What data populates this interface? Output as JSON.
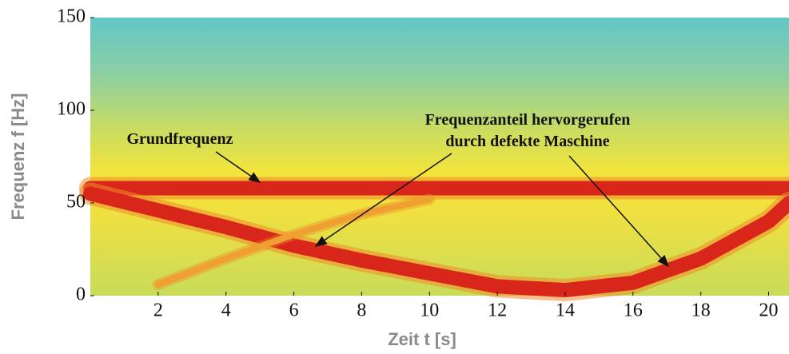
{
  "chart_data": {
    "type": "spectrogram",
    "x_label": "Zeit t [s]",
    "y_label": "Frequenz f  [Hz]",
    "xlim": [
      0,
      20.6
    ],
    "ylim": [
      0,
      150
    ],
    "xticks": [
      2,
      4,
      6,
      8,
      10,
      12,
      14,
      16,
      18,
      20
    ],
    "yticks": [
      0,
      50,
      100,
      150
    ],
    "annotations": [
      [
        "Grundfrequenz"
      ],
      [
        "Frequenzanteil hervorgerufen",
        "durch defekte Maschine"
      ]
    ],
    "series": [
      {
        "color": "#d8261a",
        "x": [
          0,
          20.6
        ],
        "values": [
          58,
          58
        ]
      },
      {
        "color": "#d8261a",
        "x": [
          0,
          2,
          4,
          6,
          8,
          10,
          12,
          14,
          16,
          18,
          20,
          20.6
        ],
        "values": [
          55,
          46,
          37,
          27,
          19,
          12,
          5,
          3,
          7,
          20,
          40,
          50
        ]
      },
      {
        "color": "#f0a030",
        "x": [
          2,
          4,
          6,
          8,
          10
        ],
        "values": [
          6,
          20,
          33,
          44,
          52
        ]
      }
    ]
  }
}
